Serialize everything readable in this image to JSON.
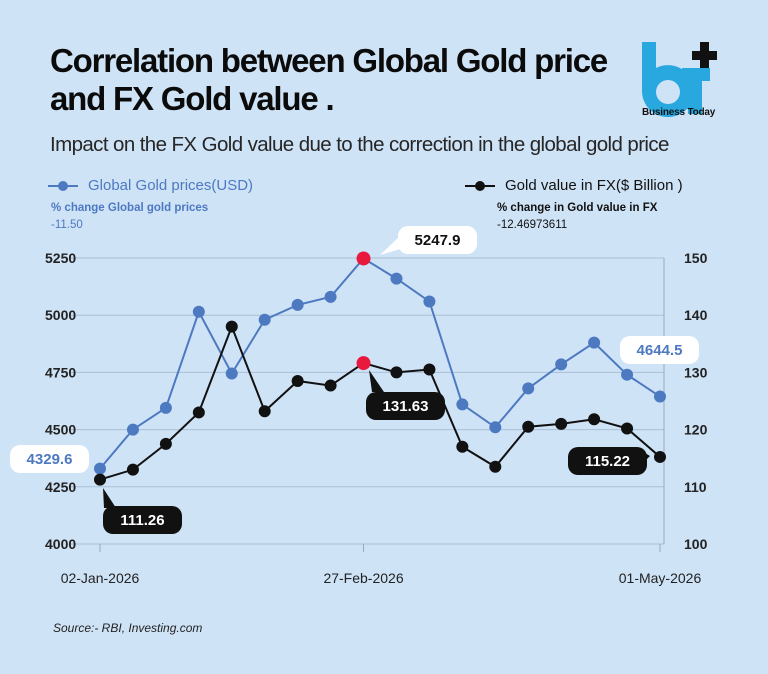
{
  "header": {
    "title": "Correlation between Global Gold price and FX Gold value .",
    "subtitle": "Impact on the FX Gold value due to the correction in the global gold price"
  },
  "brand": {
    "logo_text": "bt",
    "name": "Business Today",
    "colors": {
      "blue": "#29a8e0",
      "black": "#111111"
    }
  },
  "legend": {
    "gold": {
      "label": "Global Gold prices(USD)",
      "change_label": "% change Global gold prices",
      "change_value": "-11.50"
    },
    "fx": {
      "label": "Gold value in FX($ Billion )",
      "change_label": "% change in Gold value in FX",
      "change_value": "-12.46973611"
    }
  },
  "footer": {
    "source": "Source:- RBI, Investing.com"
  },
  "chart_data": {
    "type": "line",
    "x_tick_labels": [
      "02-Jan-2026",
      "27-Feb-2026",
      "01-May-2026"
    ],
    "x_tick_index": [
      0,
      8,
      17
    ],
    "y_left": {
      "ylim": [
        4000,
        5250
      ],
      "ticks": [
        "4000",
        "4250",
        "4500",
        "4750",
        "5000",
        "5250"
      ]
    },
    "y_right": {
      "ylim": [
        100,
        150
      ],
      "ticks": [
        "100",
        "110",
        "120",
        "130",
        "140",
        "150"
      ]
    },
    "grid": "horizontal",
    "series": [
      {
        "name": "Global Gold prices(USD)",
        "axis": "left",
        "color": "#4d79c1",
        "values": [
          4329.6,
          4500,
          4595,
          5015,
          4745,
          4980,
          5045,
          5080,
          5247.9,
          5160,
          5060,
          4610,
          4510,
          4680,
          4785,
          4880,
          4740,
          4644.5
        ],
        "highlight_index": 8,
        "highlight_color": "#e8193c",
        "labels": [
          {
            "index": 0,
            "text": "4329.6"
          },
          {
            "index": 8,
            "text": "5247.9"
          },
          {
            "index": 17,
            "text": "4644.5"
          }
        ]
      },
      {
        "name": "Gold value in FX($ Billion )",
        "axis": "right",
        "color": "#111111",
        "values": [
          111.26,
          113,
          117.5,
          123,
          138,
          123.2,
          128.5,
          127.7,
          131.63,
          130,
          130.5,
          117,
          113.5,
          120.5,
          121,
          121.8,
          120.2,
          115.22
        ],
        "highlight_index": 8,
        "highlight_color": "#e8193c",
        "labels": [
          {
            "index": 0,
            "text": "111.26"
          },
          {
            "index": 8,
            "text": "131.63"
          },
          {
            "index": 17,
            "text": "115.22"
          }
        ]
      }
    ]
  }
}
